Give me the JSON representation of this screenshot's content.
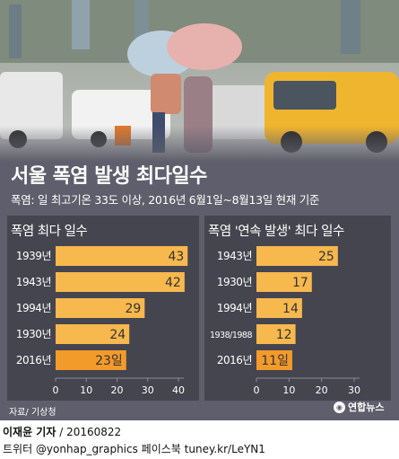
{
  "headline": "서울 폭염 발생 최다일수",
  "subtitle": "폭염: 일 최고기온 33도 이상, 2016년 6월1일~8월13일 현재 기준",
  "source": "자료/ 기상청",
  "logo_text": "연합뉴스",
  "credit": {
    "reporter": "이재윤 기자",
    "date": " / 20160822"
  },
  "social": "트위터 @yonhap_graphics  페이스북 tuney.kr/LeYN1",
  "colors": {
    "bar": "#f7b84e",
    "bar_highlight": "#f29a2a",
    "panel": "#45454f",
    "background": "#5e5e6c"
  },
  "chart_data": [
    {
      "type": "bar",
      "orientation": "horizontal",
      "title": "폭염 최다 일수",
      "categories": [
        "1939년",
        "1943년",
        "1994년",
        "1930년",
        "2016년"
      ],
      "values": [
        43,
        42,
        29,
        24,
        23
      ],
      "value_labels": [
        "43",
        "42",
        "29",
        "24",
        "23일"
      ],
      "highlight": "2016년",
      "xlim": [
        0,
        40
      ],
      "xticks": [
        0,
        10,
        20,
        30,
        40
      ]
    },
    {
      "type": "bar",
      "orientation": "horizontal",
      "title": "폭염 '연속 발생' 최다 일수",
      "categories": [
        "1943년",
        "1930년",
        "1994년",
        "1938/1988",
        "2016년"
      ],
      "values": [
        25,
        17,
        14,
        12,
        11
      ],
      "value_labels": [
        "25",
        "17",
        "14",
        "12",
        "11일"
      ],
      "highlight": "2016년",
      "xlim": [
        0,
        30
      ],
      "xticks": [
        0,
        10,
        20,
        30
      ]
    }
  ]
}
